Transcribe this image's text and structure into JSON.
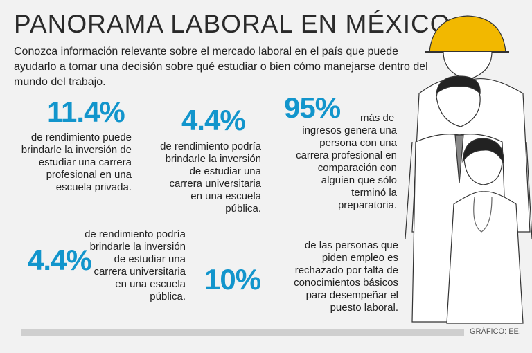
{
  "title": "PANORAMA LABORAL EN MÉXICO",
  "intro": "Conozca información relevante sobre el mercado laboral en el país que puede ayudarlo a tomar una decisión sobre qué estudiar o bien cómo manejarse dentro del mundo del trabajo.",
  "stats": [
    {
      "value": "11.4%",
      "text": "de rendimiento puede brindarle la inversión de estudiar una carrera profesional en una escuela privada."
    },
    {
      "value": "4.4%",
      "text": "de rendimiento podría brindarle la inversión de estudiar una carrera universitaria en una escuela pública."
    },
    {
      "value": "95%",
      "text_first": "más de",
      "text": "ingresos genera una persona con una carrera profesional en comparación con alguien que sólo terminó la preparatoria."
    },
    {
      "value": "4.4%",
      "text": "de rendimiento podría brindarle la inversión de estudiar una carrera universitaria en una escuela pública."
    },
    {
      "value": "10%",
      "text": "de las personas que piden empleo es rechazado por falta de conocimientos básicos para desempeñar el puesto laboral."
    }
  ],
  "credit": "GRÁFICO: EE.",
  "colors": {
    "accent": "#1295cc",
    "helmet": "#f2b800"
  },
  "illustration_icons": [
    "construction-worker-icon",
    "businessman-icon",
    "doctor-icon"
  ]
}
